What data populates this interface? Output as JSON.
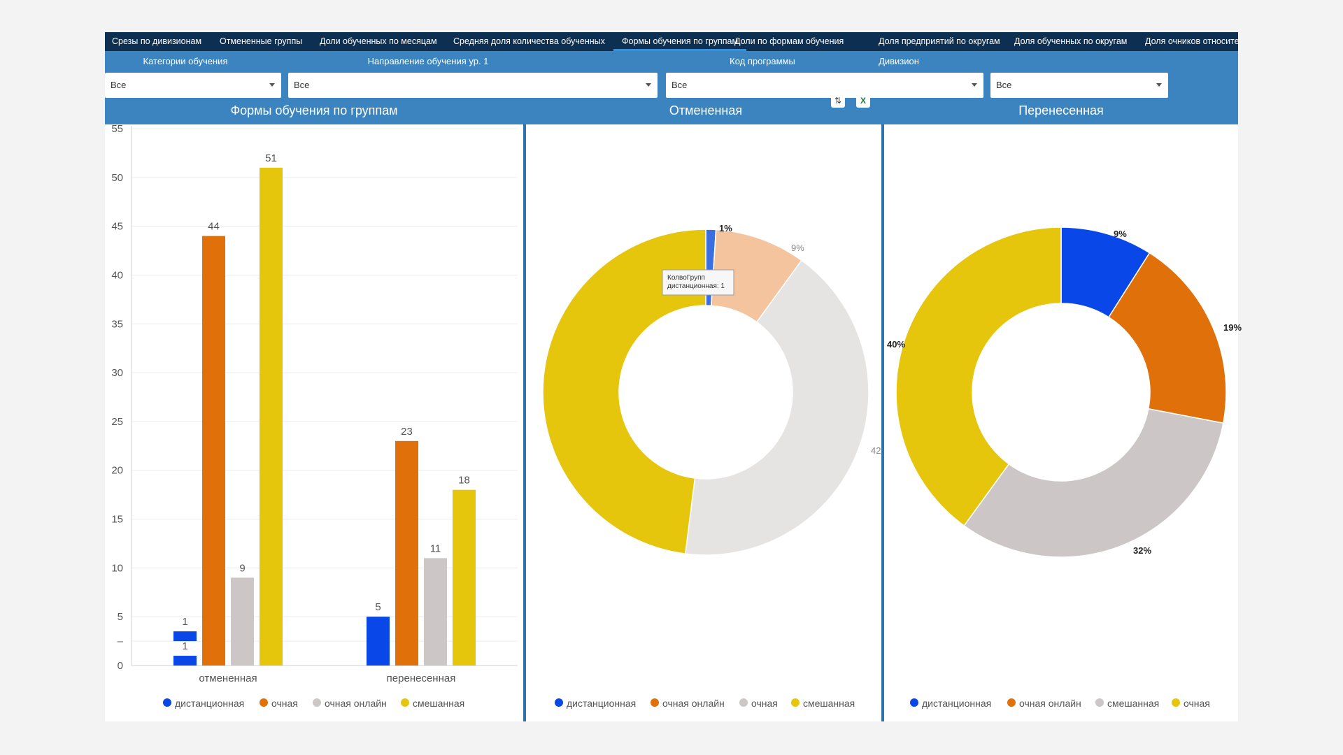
{
  "tabs": [
    {
      "label": "Срезы по дивизионам",
      "active": false
    },
    {
      "label": "Отмененные группы",
      "active": false
    },
    {
      "label": "Доли обученных по месяцам",
      "active": false
    },
    {
      "label": "Средняя доля количества обученных",
      "active": false
    },
    {
      "label": "Формы обучения по группам",
      "active": true
    },
    {
      "label": "Доли по формам обучения",
      "active": false
    },
    {
      "label": "Доля предприятий по округам",
      "active": false
    },
    {
      "label": "Доля обученных по округам",
      "active": false
    },
    {
      "label": "Доля очников относите",
      "active": false
    }
  ],
  "filters": [
    {
      "label": "Категории обучения",
      "value": "Все"
    },
    {
      "label": "Направление обучения ур. 1",
      "value": "Все"
    },
    {
      "label": "Код программы",
      "value": "Все"
    },
    {
      "label": "Дивизион",
      "value": "Все"
    }
  ],
  "toolbar": {
    "sort_icon": "sort-icon",
    "excel_icon": "excel-export-icon"
  },
  "colors": {
    "blue": "#0a47e8",
    "orange": "#e0700a",
    "gray": "#ccc6c6",
    "yellow": "#e5c60c",
    "peach": "#f3c49e",
    "lightgray": "#e6e4e2"
  },
  "chart_data": [
    {
      "type": "bar",
      "title": "Формы обучения по группам",
      "categories": [
        "отмененная",
        "перенесенная"
      ],
      "series": [
        {
          "name": "дистанционная",
          "color": "#0a47e8",
          "values": [
            1,
            5
          ]
        },
        {
          "name": "очная",
          "color": "#e0700a",
          "values": [
            44,
            23
          ]
        },
        {
          "name": "очная онлайн",
          "color": "#ccc6c6",
          "values": [
            9,
            11
          ]
        },
        {
          "name": "смешанная",
          "color": "#e5c60c",
          "values": [
            51,
            18
          ]
        }
      ],
      "extra_bar": {
        "series": "дистанционная",
        "category": "отмененная",
        "value": 1
      },
      "ylim": [
        0,
        55
      ],
      "yticks": [
        "0",
        "–",
        "5",
        "10",
        "15",
        "20",
        "25",
        "30",
        "35",
        "40",
        "45",
        "50",
        "55"
      ],
      "grid": true,
      "legend": "bottom"
    },
    {
      "type": "pie",
      "title": "Отмененная",
      "slices": [
        {
          "name": "дистанционная",
          "value": 1,
          "color": "#3b6fe0",
          "label": "1%"
        },
        {
          "name": "очная онлайн",
          "value": 9,
          "color": "#f3c49e",
          "label": "9%"
        },
        {
          "name": "очная",
          "value": 42,
          "color": "#e6e4e2",
          "label": "42"
        },
        {
          "name": "смешанная",
          "value": 48,
          "color": "#e5c60c",
          "label": ""
        }
      ],
      "legend_colors": [
        "#0a47e8",
        "#e0700a",
        "#ccc6c6",
        "#e5c60c"
      ],
      "tooltip": {
        "title": "КолвоГрупп",
        "text": "дистанционная: 1"
      },
      "legend": "bottom"
    },
    {
      "type": "pie",
      "title": "Перенесенная",
      "slices": [
        {
          "name": "дистанционная",
          "value": 9,
          "color": "#0a47e8",
          "label": "9%"
        },
        {
          "name": "очная онлайн",
          "value": 19,
          "color": "#e0700a",
          "label": "19%"
        },
        {
          "name": "смешанная",
          "value": 32,
          "color": "#ccc6c6",
          "label": "32%"
        },
        {
          "name": "очная",
          "value": 40,
          "color": "#e5c60c",
          "label": "40%"
        }
      ],
      "legend_colors": [
        "#0a47e8",
        "#e0700a",
        "#ccc6c6",
        "#e5c60c"
      ],
      "legend": "bottom"
    }
  ]
}
